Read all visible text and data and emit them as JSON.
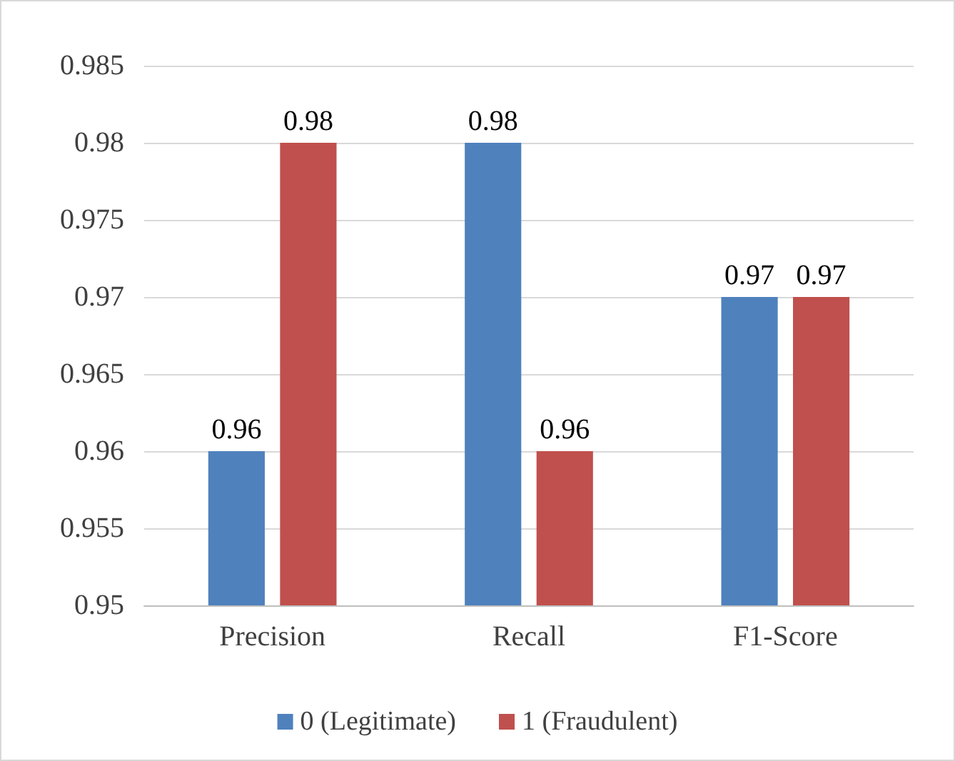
{
  "chart_data": {
    "type": "bar",
    "categories": [
      "Precision",
      "Recall",
      "F1-Score"
    ],
    "series": [
      {
        "name": "0 (Legitimate)",
        "color": "#4f81bd",
        "values": [
          0.96,
          0.98,
          0.97
        ]
      },
      {
        "name": "1 (Fraudulent)",
        "color": "#c0504d",
        "values": [
          0.98,
          0.96,
          0.97
        ]
      }
    ],
    "ylim": [
      0.95,
      0.985
    ],
    "yticks": [
      0.95,
      0.955,
      0.96,
      0.965,
      0.97,
      0.975,
      0.98,
      0.985
    ],
    "grid": "y",
    "legend": "bottom",
    "data_labels": true
  }
}
